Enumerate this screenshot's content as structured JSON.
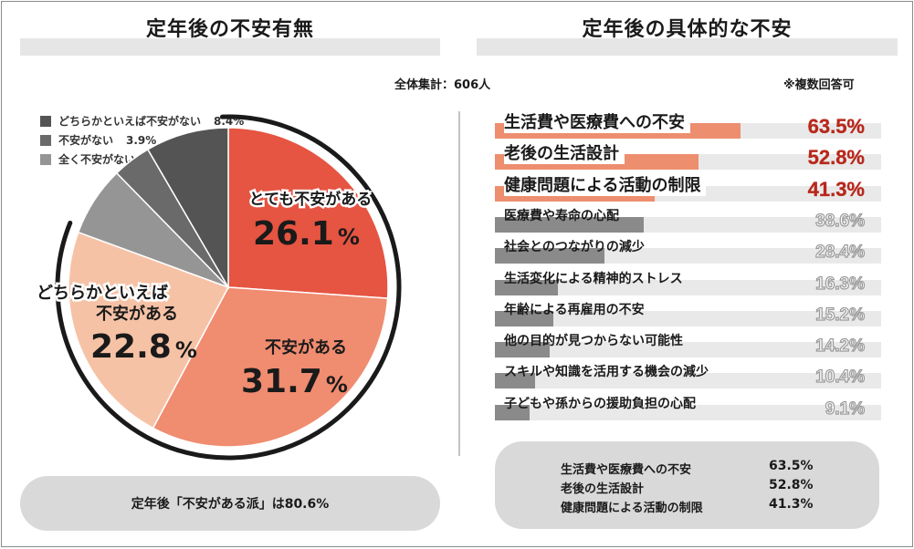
{
  "left_title": "定年後の不安有無",
  "right_title": "定年後の具体的な不安",
  "total_note": "全体集計：606人",
  "multi_note": "※複数回答可",
  "pie_summary": "定年後「不安がある派」は80.6%",
  "chart_data": [
    {
      "type": "pie",
      "slices": [
        {
          "name": "とても不安がある",
          "value": 26.1,
          "label": "26.1%",
          "color": "#e65442"
        },
        {
          "name": "不安がある",
          "value": 31.7,
          "label": "31.7%",
          "color": "#f08c70"
        },
        {
          "name": "どちらかといえば不安がある",
          "value": 22.8,
          "label": "22.8%",
          "color": "#f6c2a6"
        },
        {
          "name": "全く不安がない",
          "value": 7.1,
          "label": "7.1%",
          "color": "#959595"
        },
        {
          "name": "不安がない",
          "value": 3.9,
          "label": "3.9%",
          "color": "#6a6a6a"
        },
        {
          "name": "どちらかといえば不安がない",
          "value": 8.4,
          "label": "8.4%",
          "color": "#545454"
        }
      ],
      "slice_labels": [
        {
          "text": "とても不安がある",
          "pct_num": "26.1",
          "pct_unit": "%"
        },
        {
          "text": "不安がある",
          "pct_num": "31.7",
          "pct_unit": "%"
        },
        {
          "text_line1": "どちらかといえば",
          "text_line2": "不安がある",
          "pct_num": "22.8",
          "pct_unit": "%"
        }
      ],
      "legend": [
        {
          "name": "どちらかといえば不安がない",
          "label": "8.4%",
          "color": "#545454"
        },
        {
          "name": "不安がない",
          "label": "3.9%",
          "color": "#6a6a6a"
        },
        {
          "name": "全く不安がない",
          "label": "7.1%",
          "color": "#959595"
        }
      ]
    },
    {
      "type": "bar",
      "orientation": "horizontal",
      "xlim": [
        0,
        100
      ],
      "categories": [
        "生活費や医療費への不安",
        "老後の生活設計",
        "健康問題による活動の制限",
        "医療費や寿命の心配",
        "社会とのつながりの減少",
        "生活変化による精神的ストレス",
        "年齢による再雇用の不安",
        "他の目的が見つからない可能性",
        "スキルや知識を活用する機会の減少",
        "子どもや孫からの援助負担の心配"
      ],
      "values": [
        63.5,
        52.8,
        41.3,
        38.6,
        28.4,
        16.3,
        15.2,
        14.2,
        10.4,
        9.1
      ],
      "labels": [
        "63.5%",
        "52.8%",
        "41.3%",
        "38.6%",
        "28.4%",
        "16.3%",
        "15.2%",
        "14.2%",
        "10.4%",
        "9.1%"
      ],
      "highlight_color": "#ed8e6e",
      "base_color": "#8a8a8a"
    }
  ],
  "summary": [
    {
      "label": "生活費や医療費への不安",
      "value": "63.5%"
    },
    {
      "label": "老後の生活設計",
      "value": "52.8%"
    },
    {
      "label": "健康問題による活動の制限",
      "value": "41.3%"
    }
  ]
}
